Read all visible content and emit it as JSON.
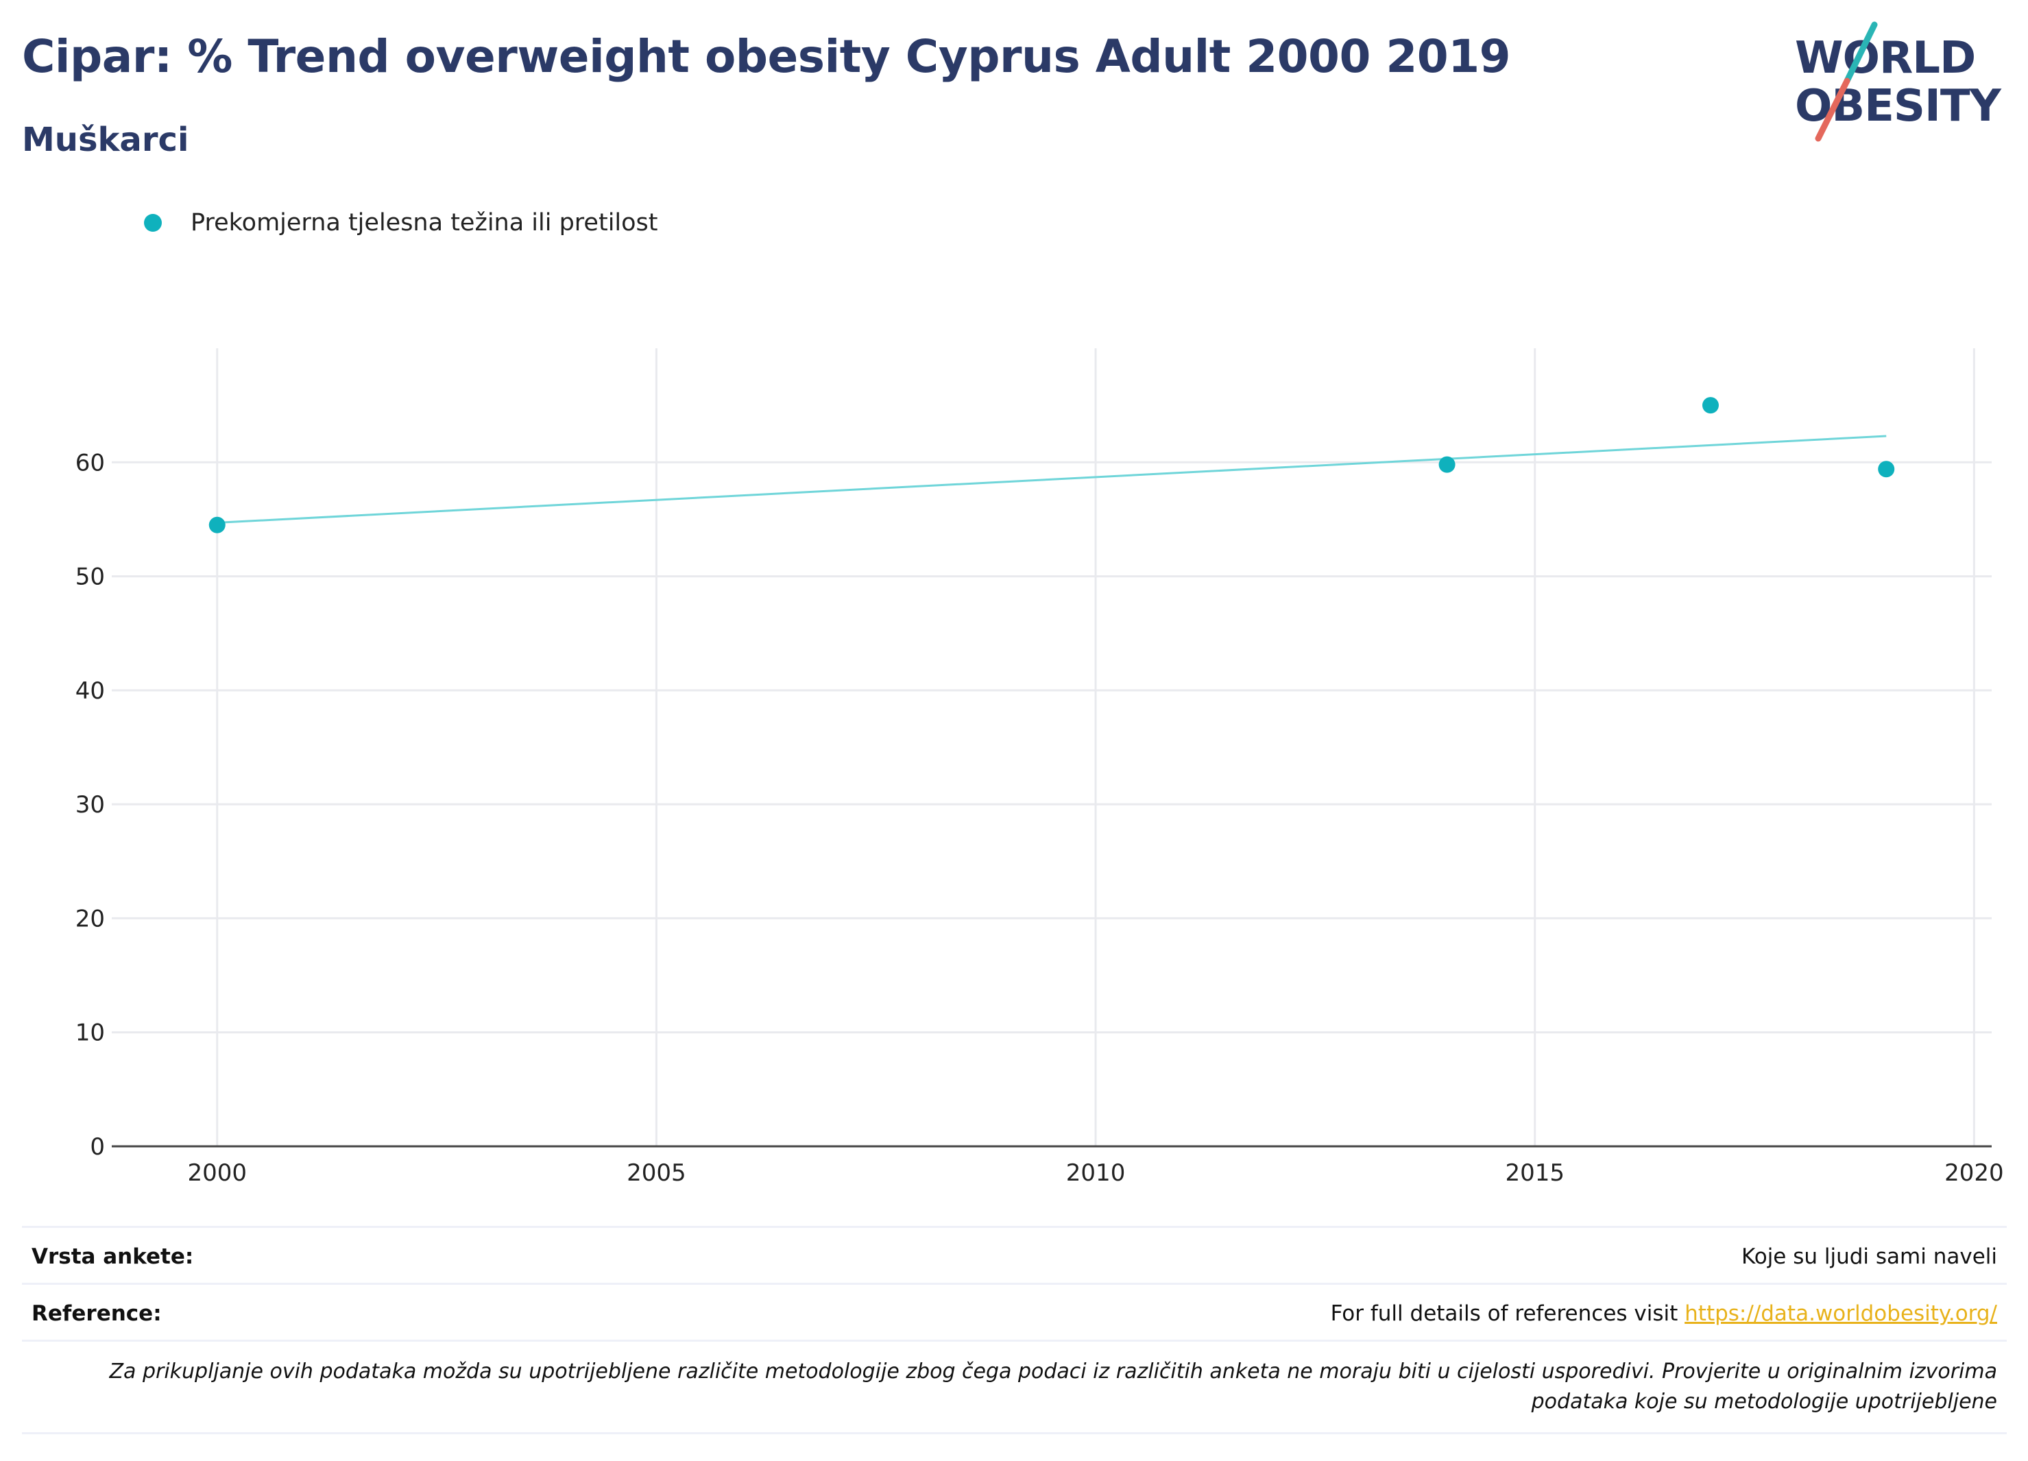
{
  "header": {
    "title": "Cipar: % Trend overweight obesity Cyprus Adult 2000 2019",
    "subtitle": "Muškarci"
  },
  "logo": {
    "line1": "WORLD",
    "line2": "OBESITY"
  },
  "colors": {
    "title": "#2b3a67",
    "series": "#0fb1bd",
    "trend": "#6fd5d9",
    "link": "#e8b21b",
    "logo_slash_top": "#2ab5b5",
    "logo_slash_bottom": "#e4685c"
  },
  "legend": {
    "placement": "top-left",
    "items": [
      {
        "label": "Prekomjerna tjelesna težina ili pretilost",
        "color": "#0fb1bd"
      }
    ]
  },
  "chart_data": {
    "type": "scatter",
    "title": "Cipar: % Trend overweight obesity Cyprus Adult 2000 2019",
    "subtitle": "Muškarci",
    "xlabel": "",
    "ylabel": "",
    "xlim": [
      1998.8,
      2020.2
    ],
    "ylim": [
      0,
      70
    ],
    "xticks": [
      2000,
      2005,
      2010,
      2015,
      2020
    ],
    "yticks": [
      0,
      10,
      20,
      30,
      40,
      50,
      60
    ],
    "grid": true,
    "series": [
      {
        "name": "Prekomjerna tjelesna težina ili pretilost",
        "points": [
          {
            "x": 2000,
            "y": 54.5
          },
          {
            "x": 2014,
            "y": 59.8
          },
          {
            "x": 2017,
            "y": 65.0
          },
          {
            "x": 2019,
            "y": 59.4
          }
        ]
      }
    ],
    "trendline": {
      "x": [
        2000,
        2019
      ],
      "y": [
        54.7,
        62.3
      ]
    }
  },
  "footer": {
    "survey_label": "Vrsta ankete:",
    "survey_value": "Koje su ljudi sami naveli",
    "reference_label": "Reference:",
    "reference_text": "For full details of references visit ",
    "reference_link": "https://data.worldobesity.org/",
    "note": "Za prikupljanje ovih podataka možda su upotrijebljene različite metodologije zbog čega podaci iz različitih anketa ne moraju biti u cijelosti usporedivi. Provjerite u originalnim izvorima podataka koje su metodologije upotrijebljene"
  }
}
